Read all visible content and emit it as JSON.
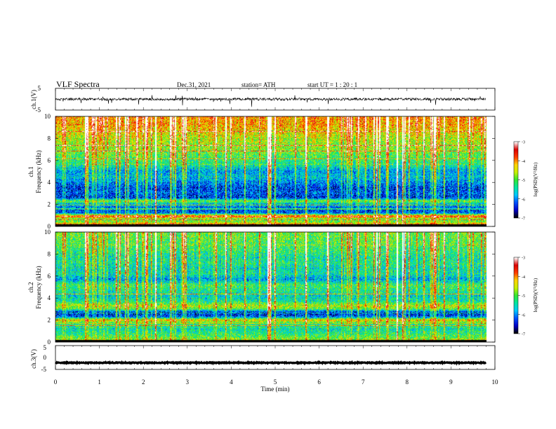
{
  "header": {
    "title": "VLF  Spectra",
    "date": "Dec.31, 2021",
    "station": "station= ATH",
    "start": "start  UT  =    1  : 20 : 1"
  },
  "chart_data": [
    {
      "type": "line",
      "name": "ch1-waveform",
      "ylabel": "ch.1(V)",
      "xlim": [
        0,
        10
      ],
      "ylim": [
        -5,
        5
      ],
      "yticks": [
        "5",
        "-5"
      ],
      "data_end_min": 9.8,
      "baseline": 0,
      "noise_amplitude": 1.2,
      "spike_amplitude": 3.5
    },
    {
      "type": "heatmap",
      "name": "ch1-spectrogram",
      "ylabel": "ch.1\nFrequency  (kHz)",
      "xlim": [
        0,
        10
      ],
      "ylim": [
        0,
        10
      ],
      "yticks": [
        "0",
        "2",
        "4",
        "6",
        "8",
        "10"
      ],
      "data_end_min": 9.8,
      "colorbar": {
        "label": "log(PSD)(V²/Hz)",
        "range": [
          -7,
          -3
        ],
        "ticks": [
          "-3",
          "-4",
          "-5",
          "-6",
          "-7"
        ]
      },
      "profile": [
        {
          "f": 0.0,
          "v": -3.2
        },
        {
          "f": 0.3,
          "v": -4.6
        },
        {
          "f": 0.6,
          "v": -5.2
        },
        {
          "f": 0.9,
          "v": -3.6
        },
        {
          "f": 1.2,
          "v": -6.2
        },
        {
          "f": 1.6,
          "v": -6.3
        },
        {
          "f": 2.0,
          "v": -5.8
        },
        {
          "f": 2.3,
          "v": -4.9
        },
        {
          "f": 2.6,
          "v": -6.4
        },
        {
          "f": 3.0,
          "v": -6.2
        },
        {
          "f": 3.5,
          "v": -6.3
        },
        {
          "f": 4.0,
          "v": -6.0
        },
        {
          "f": 4.5,
          "v": -5.7
        },
        {
          "f": 5.0,
          "v": -5.9
        },
        {
          "f": 5.5,
          "v": -5.4
        },
        {
          "f": 6.0,
          "v": -5.2
        },
        {
          "f": 6.5,
          "v": -5.0
        },
        {
          "f": 7.0,
          "v": -4.8
        },
        {
          "f": 7.5,
          "v": -4.7
        },
        {
          "f": 8.0,
          "v": -4.6
        },
        {
          "f": 8.5,
          "v": -4.4
        },
        {
          "f": 9.0,
          "v": -4.2
        },
        {
          "f": 9.5,
          "v": -4.1
        },
        {
          "f": 10.0,
          "v": -4.0
        }
      ]
    },
    {
      "type": "heatmap",
      "name": "ch2-spectrogram",
      "ylabel": "ch.2\nFrequency  (kHz)",
      "xlim": [
        0,
        10
      ],
      "ylim": [
        0,
        10
      ],
      "yticks": [
        "0",
        "2",
        "4",
        "6",
        "8",
        "10"
      ],
      "data_end_min": 9.8,
      "colorbar": {
        "label": "log(PSD)(V²/Hz)",
        "range": [
          -7,
          -3
        ],
        "ticks": [
          "-3",
          "-4",
          "-5",
          "-6",
          "-7"
        ]
      },
      "profile": [
        {
          "f": 0.0,
          "v": -4.4
        },
        {
          "f": 0.4,
          "v": -5.0
        },
        {
          "f": 0.8,
          "v": -5.3
        },
        {
          "f": 1.2,
          "v": -5.5
        },
        {
          "f": 1.6,
          "v": -5.3
        },
        {
          "f": 2.0,
          "v": -4.3
        },
        {
          "f": 2.3,
          "v": -6.3
        },
        {
          "f": 2.7,
          "v": -6.4
        },
        {
          "f": 3.0,
          "v": -5.0
        },
        {
          "f": 3.3,
          "v": -4.6
        },
        {
          "f": 3.7,
          "v": -5.4
        },
        {
          "f": 4.2,
          "v": -5.6
        },
        {
          "f": 4.7,
          "v": -5.3
        },
        {
          "f": 5.2,
          "v": -5.1
        },
        {
          "f": 5.7,
          "v": -5.9
        },
        {
          "f": 6.2,
          "v": -5.4
        },
        {
          "f": 6.7,
          "v": -5.5
        },
        {
          "f": 7.2,
          "v": -5.3
        },
        {
          "f": 7.7,
          "v": -5.4
        },
        {
          "f": 8.2,
          "v": -5.2
        },
        {
          "f": 8.7,
          "v": -5.1
        },
        {
          "f": 9.2,
          "v": -5.0
        },
        {
          "f": 10.0,
          "v": -4.9
        }
      ]
    },
    {
      "type": "line",
      "name": "ch3-waveform",
      "ylabel": "ch.3(V)",
      "xlim": [
        0,
        10
      ],
      "ylim": [
        -5,
        5
      ],
      "yticks": [
        "5",
        "0",
        "-5"
      ],
      "data_end_min": 9.8,
      "baseline": -2.2,
      "noise_amplitude": 0.35
    }
  ],
  "x_axis": {
    "label": "Time  (min)",
    "ticks": [
      "0",
      "1",
      "2",
      "3",
      "4",
      "5",
      "6",
      "7",
      "8",
      "9",
      "10"
    ]
  },
  "colorscale": [
    "#000000",
    "#0000c8",
    "#0050ff",
    "#00c8ff",
    "#00e6a0",
    "#32e632",
    "#c8f000",
    "#ffd200",
    "#ff3c00",
    "#dc0000",
    "#ffffff"
  ]
}
